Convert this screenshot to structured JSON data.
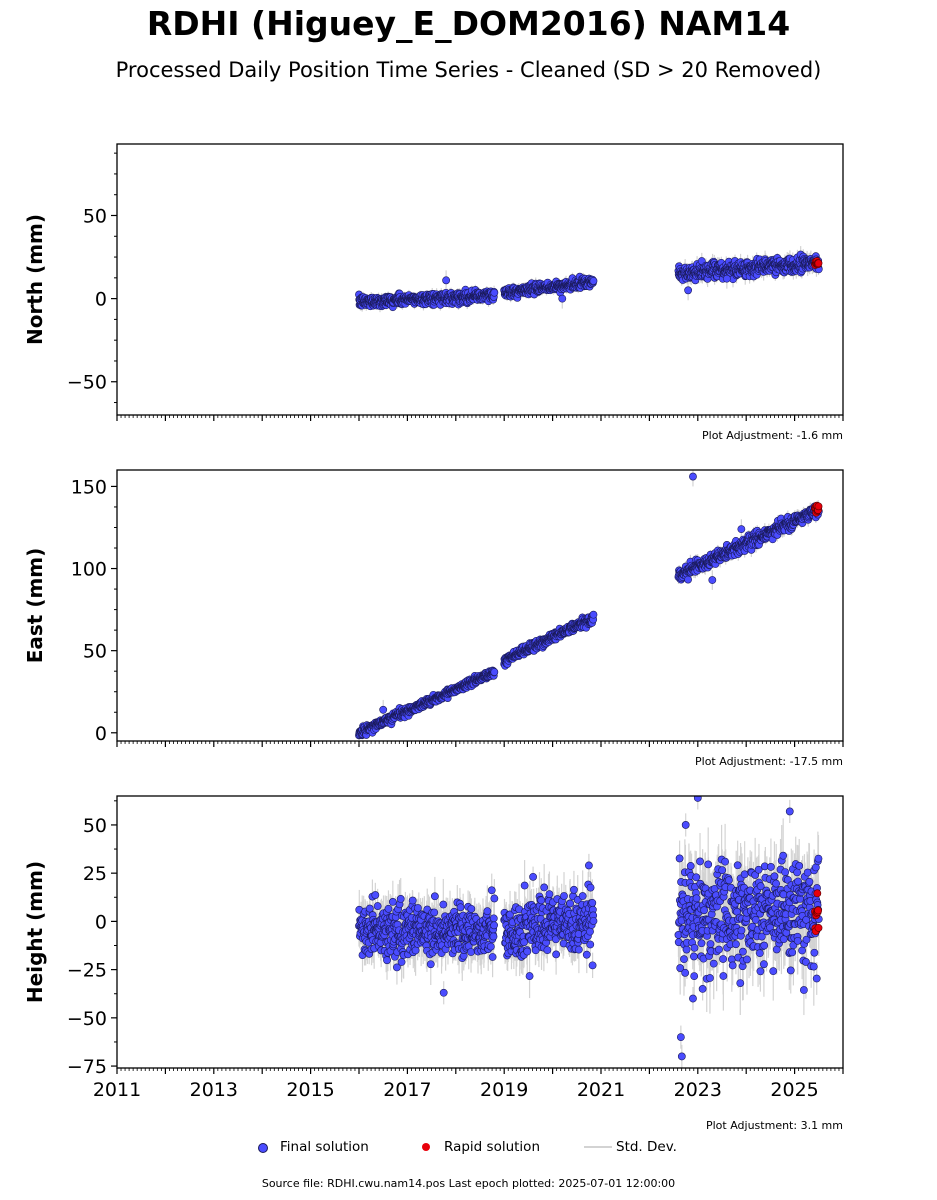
{
  "title": "RDHI (Higuey_E_DOM2016) NAM14",
  "subtitle": "Processed Daily Position Time Series - Cleaned (SD > 20 Removed)",
  "colors": {
    "final": "#4a4cff",
    "rapid": "#e8000b",
    "stddev": "#d3d3d3"
  },
  "legend": {
    "final": "Final solution",
    "rapid": "Rapid solution",
    "stddev": "Std. Dev."
  },
  "source": "Source file: RDHI.cwu.nam14.pos  Last epoch plotted: 2025-07-01 12:00:00",
  "chart_data": [
    {
      "type": "scatter",
      "ylabel": "North (mm)",
      "adjustment": "Plot Adjustment: -1.6 mm",
      "xlim": [
        2011,
        2026
      ],
      "ylim": [
        -70,
        93
      ],
      "yticks": [
        -50,
        0,
        50
      ],
      "ytick_labels": [
        "−50",
        "0",
        "50"
      ],
      "xticks": [
        2011,
        2013,
        2015,
        2017,
        2019,
        2021,
        2023,
        2025
      ],
      "show_xtick_labels": false,
      "segments": [
        {
          "start": 2016.0,
          "end": 2018.8,
          "y_start": -2,
          "y_end": 2,
          "noise": 1.6,
          "err": 2.5
        },
        {
          "start": 2019.0,
          "end": 2020.85,
          "y_start": 3.5,
          "y_end": 10,
          "noise": 1.4,
          "err": 2.5
        },
        {
          "start": 2022.6,
          "end": 2025.5,
          "y_start": 15,
          "y_end": 22,
          "noise": 2.2,
          "err": 3.5
        }
      ],
      "rapid": {
        "start": 2025.42,
        "end": 2025.5,
        "y": 21.5,
        "noise": 1.0
      },
      "outliers": [
        [
          2017.8,
          11
        ],
        [
          2020.2,
          0
        ],
        [
          2022.8,
          5
        ],
        [
          2023.6,
          12
        ]
      ]
    },
    {
      "type": "scatter",
      "ylabel": "East (mm)",
      "adjustment": "Plot Adjustment: -17.5 mm",
      "xlim": [
        2011,
        2026
      ],
      "ylim": [
        -5,
        160
      ],
      "yticks": [
        0,
        50,
        100,
        150
      ],
      "ytick_labels": [
        "0",
        "50",
        "100",
        "150"
      ],
      "xticks": [
        2011,
        2013,
        2015,
        2017,
        2019,
        2021,
        2023,
        2025
      ],
      "show_xtick_labels": false,
      "segments": [
        {
          "start": 2016.0,
          "end": 2018.8,
          "y_start": 0,
          "y_end": 37,
          "noise": 1.3,
          "err": 2.0
        },
        {
          "start": 2019.0,
          "end": 2020.85,
          "y_start": 44,
          "y_end": 70,
          "noise": 1.3,
          "err": 2.0
        },
        {
          "start": 2022.6,
          "end": 2025.5,
          "y_start": 96,
          "y_end": 136,
          "noise": 1.8,
          "err": 3.0
        }
      ],
      "rapid": {
        "start": 2025.42,
        "end": 2025.5,
        "y": 137,
        "noise": 1.5
      },
      "outliers": [
        [
          2022.9,
          156
        ],
        [
          2016.5,
          14
        ],
        [
          2023.3,
          93
        ],
        [
          2023.9,
          124
        ]
      ]
    },
    {
      "type": "scatter",
      "ylabel": "Height (mm)",
      "adjustment": "Plot Adjustment: 3.1 mm",
      "xlim": [
        2011,
        2026
      ],
      "ylim": [
        -76,
        65
      ],
      "yticks": [
        -75,
        -50,
        -25,
        0,
        25,
        50
      ],
      "ytick_labels": [
        "−75",
        "−50",
        "−25",
        "0",
        "25",
        "50"
      ],
      "xticks": [
        2011,
        2013,
        2015,
        2017,
        2019,
        2021,
        2023,
        2025
      ],
      "xtick_labels": [
        "2011",
        "2013",
        "2015",
        "2017",
        "2019",
        "2021",
        "2023",
        "2025"
      ],
      "show_xtick_labels": true,
      "segments": [
        {
          "start": 2016.0,
          "end": 2018.8,
          "y_start": -5,
          "y_end": -5,
          "noise": 6.5,
          "err": 9
        },
        {
          "start": 2019.0,
          "end": 2020.85,
          "y_start": -6,
          "y_end": 0,
          "noise": 7.5,
          "err": 9
        },
        {
          "start": 2022.6,
          "end": 2025.5,
          "y_start": 3,
          "y_end": 5,
          "noise": 13,
          "err": 14
        }
      ],
      "rapid": {
        "start": 2025.42,
        "end": 2025.5,
        "y": 5,
        "noise": 8
      },
      "outliers": [
        [
          2022.65,
          -60
        ],
        [
          2022.67,
          -70
        ],
        [
          2022.75,
          50
        ],
        [
          2023.0,
          64
        ],
        [
          2024.9,
          57
        ],
        [
          2020.75,
          29
        ],
        [
          2017.75,
          -37
        ],
        [
          2022.9,
          -40
        ],
        [
          2023.1,
          -35
        ]
      ]
    }
  ]
}
